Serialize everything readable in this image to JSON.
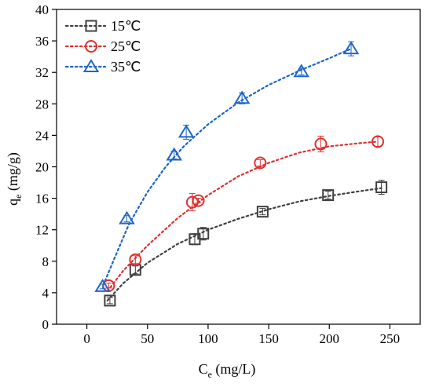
{
  "chart_data": {
    "type": "scatter",
    "xlabel_main": "C",
    "xlabel_sub": "e",
    "xlabel_unit": " (mg/L)",
    "ylabel_main": "q",
    "ylabel_sub": "e",
    "ylabel_unit": " (mg/g)",
    "xlim": [
      -25,
      275
    ],
    "ylim": [
      0,
      40
    ],
    "xticks": [
      0,
      50,
      100,
      150,
      200,
      250
    ],
    "yticks": [
      0,
      4,
      8,
      12,
      16,
      20,
      24,
      28,
      32,
      36,
      40
    ],
    "legend_position": "top-left",
    "series": [
      {
        "name": "15℃",
        "marker": "square",
        "color": "#404040",
        "x": [
          19,
          40,
          89,
          96,
          145,
          199,
          243
        ],
        "y": [
          3.0,
          6.9,
          10.8,
          11.5,
          14.3,
          16.4,
          17.4
        ],
        "err": [
          0.4,
          0.5,
          0.7,
          0.8,
          0.4,
          0.5,
          0.9
        ],
        "fit": [
          [
            17,
            3.0
          ],
          [
            30,
            5.2
          ],
          [
            50,
            7.8
          ],
          [
            75,
            10.2
          ],
          [
            100,
            12.0
          ],
          [
            125,
            13.4
          ],
          [
            150,
            14.6
          ],
          [
            175,
            15.6
          ],
          [
            200,
            16.3
          ],
          [
            225,
            16.9
          ],
          [
            243,
            17.3
          ]
        ]
      },
      {
        "name": "25℃",
        "marker": "circle",
        "color": "#e03030",
        "x": [
          18,
          40,
          87,
          92,
          143,
          193,
          240
        ],
        "y": [
          4.9,
          8.2,
          15.5,
          15.7,
          20.5,
          22.9,
          23.2
        ],
        "err": [
          0.3,
          0.5,
          1.1,
          0.3,
          0.4,
          1.0,
          0.6
        ],
        "fit": [
          [
            17,
            4.2
          ],
          [
            30,
            6.8
          ],
          [
            50,
            10.0
          ],
          [
            75,
            13.5
          ],
          [
            100,
            16.4
          ],
          [
            125,
            18.8
          ],
          [
            150,
            20.5
          ],
          [
            175,
            21.8
          ],
          [
            200,
            22.6
          ],
          [
            225,
            23.0
          ],
          [
            240,
            23.2
          ]
        ]
      },
      {
        "name": "35℃",
        "marker": "triangle",
        "color": "#1f66c8",
        "x": [
          13,
          33,
          72,
          82,
          128,
          177,
          218
        ],
        "y": [
          4.8,
          13.4,
          21.5,
          24.4,
          28.7,
          32.1,
          35.0
        ],
        "err": [
          0.3,
          0.4,
          0.5,
          0.9,
          0.7,
          0.4,
          0.9
        ],
        "fit": [
          [
            15,
            5.5
          ],
          [
            25,
            9.2
          ],
          [
            35,
            12.8
          ],
          [
            50,
            16.8
          ],
          [
            65,
            20.0
          ],
          [
            80,
            22.6
          ],
          [
            100,
            25.4
          ],
          [
            125,
            28.2
          ],
          [
            150,
            30.4
          ],
          [
            175,
            32.2
          ],
          [
            200,
            33.8
          ],
          [
            218,
            35.0
          ]
        ]
      }
    ]
  }
}
